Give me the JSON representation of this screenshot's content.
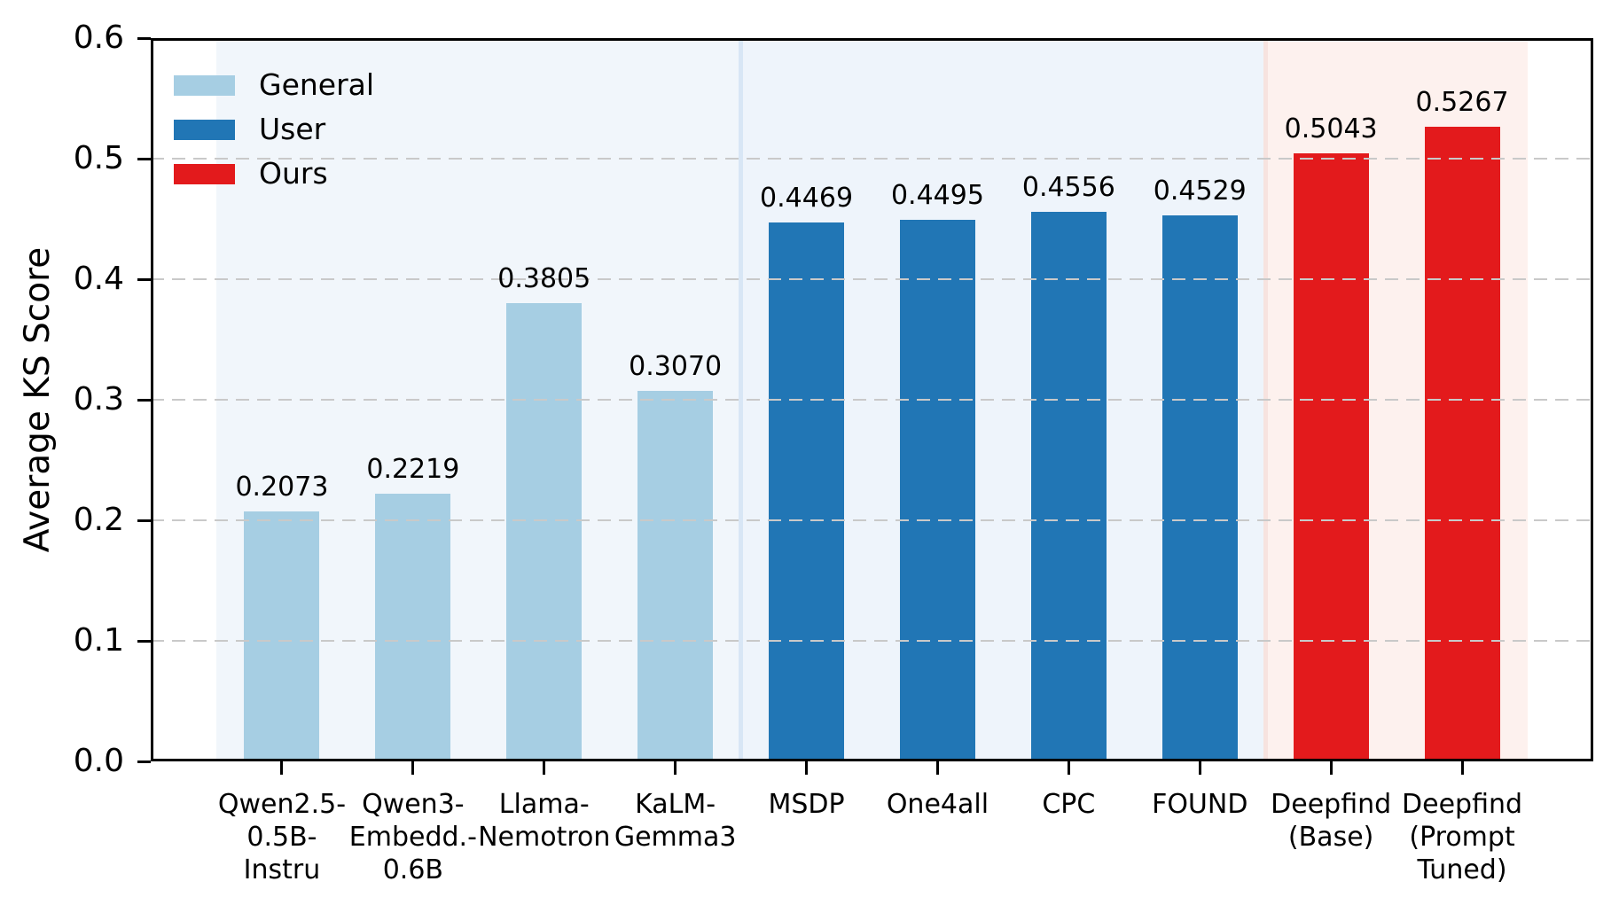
{
  "legend": {
    "items": [
      {
        "label": "General",
        "color": "#a6cee3"
      },
      {
        "label": "User",
        "color": "#2176b5"
      },
      {
        "label": "Ours",
        "color": "#e31a1c"
      }
    ]
  },
  "chart_data": {
    "type": "bar",
    "title": "",
    "xlabel": "",
    "ylabel": "Average KS Score",
    "ylim": [
      0.0,
      0.6
    ],
    "yticks": [
      0.0,
      0.1,
      0.2,
      0.3,
      0.4,
      0.5,
      0.6
    ],
    "ytick_labels": [
      "0.0",
      "0.1",
      "0.2",
      "0.3",
      "0.4",
      "0.5",
      "0.6"
    ],
    "grid": {
      "axis": "y",
      "style": "dashed",
      "color": "#c9c9c9",
      "drawn_above_bars": true
    },
    "legend_position": "upper left, no frame",
    "bars": [
      {
        "category": "Qwen2.5-\n0.5B-\nInstru",
        "value": 0.2073,
        "value_label": "0.2073",
        "group": "General"
      },
      {
        "category": "Qwen3-\nEmbedd.-\n0.6B",
        "value": 0.2219,
        "value_label": "0.2219",
        "group": "General"
      },
      {
        "category": "Llama-\nNemotron",
        "value": 0.3805,
        "value_label": "0.3805",
        "group": "General"
      },
      {
        "category": "KaLM-\nGemma3",
        "value": 0.307,
        "value_label": "0.3070",
        "group": "General"
      },
      {
        "category": "MSDP",
        "value": 0.4469,
        "value_label": "0.4469",
        "group": "User"
      },
      {
        "category": "One4all",
        "value": 0.4495,
        "value_label": "0.4495",
        "group": "User"
      },
      {
        "category": "CPC",
        "value": 0.4556,
        "value_label": "0.4556",
        "group": "User"
      },
      {
        "category": "FOUND",
        "value": 0.4529,
        "value_label": "0.4529",
        "group": "User"
      },
      {
        "category": "Deepfind\n(Base)",
        "value": 0.5043,
        "value_label": "0.5043",
        "group": "Ours"
      },
      {
        "category": "Deepfind\n(Prompt\nTuned)",
        "value": 0.5267,
        "value_label": "0.5267",
        "group": "Ours"
      }
    ],
    "groups": {
      "General": {
        "bar_color": "#a6cee3",
        "region_color": "#f1f6fb"
      },
      "User": {
        "bar_color": "#2176b5",
        "region_color": "#eef4fb"
      },
      "Ours": {
        "bar_color": "#e31a1c",
        "region_color": "#fdf1ee"
      }
    },
    "regions": [
      {
        "group": "General",
        "slot_start": 0,
        "slot_end": 4
      },
      {
        "group": "User",
        "slot_start": 4,
        "slot_end": 8
      },
      {
        "group": "Ours",
        "slot_start": 8,
        "slot_end": 10
      }
    ],
    "seams": [
      {
        "at_slot": 4,
        "color": "#d8e6f5"
      },
      {
        "at_slot": 8,
        "color": "#f7e3df"
      }
    ],
    "axis_color": "#000000",
    "background_color": "#ffffff"
  }
}
